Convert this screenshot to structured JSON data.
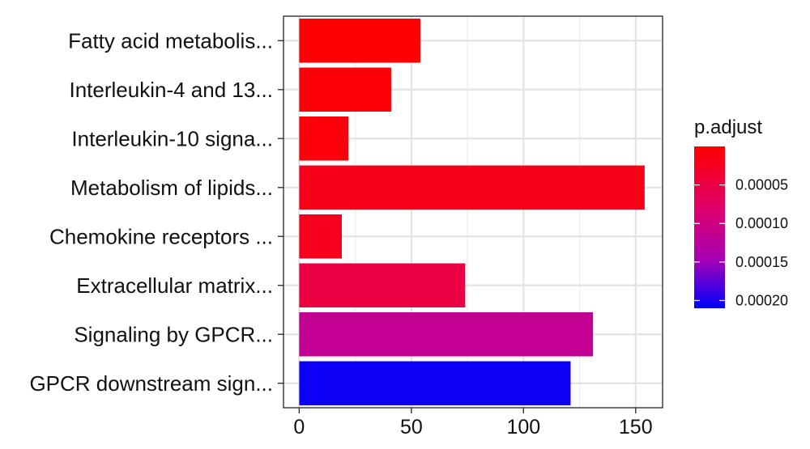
{
  "chart_data": {
    "type": "bar",
    "orientation": "horizontal",
    "categories": [
      "Fatty acid metabolis...",
      "Interleukin-4 and 13...",
      "Interleukin-10 signa...",
      "Metabolism of lipids...",
      "Chemokine receptors ...",
      "Extracellular matrix...",
      "Signaling by GPCR...",
      "GPCR downstream sign..."
    ],
    "values": [
      54,
      41,
      22,
      154,
      19,
      74,
      131,
      121
    ],
    "p_adjust": [
      1e-06,
      5e-06,
      8e-06,
      1.8e-05,
      2.2e-05,
      5e-05,
      0.000115,
      0.000205
    ],
    "xlim": [
      -7,
      162
    ],
    "x_ticks": [
      0,
      50,
      100,
      150
    ],
    "x_tick_labels": [
      "0",
      "50",
      "100",
      "150"
    ],
    "title": "",
    "xlabel": "",
    "ylabel": "",
    "grid": true,
    "legend": {
      "title": "p.adjust",
      "placement": "right",
      "ticks": [
        5e-05,
        0.0001,
        0.00015,
        0.0002
      ],
      "tick_labels": [
        "0.00005",
        "0.00010",
        "0.00015",
        "0.00020"
      ],
      "scale_min": 0,
      "scale_max": 0.00021,
      "color_low": "#ff0000",
      "color_high": "#0000ff"
    }
  }
}
